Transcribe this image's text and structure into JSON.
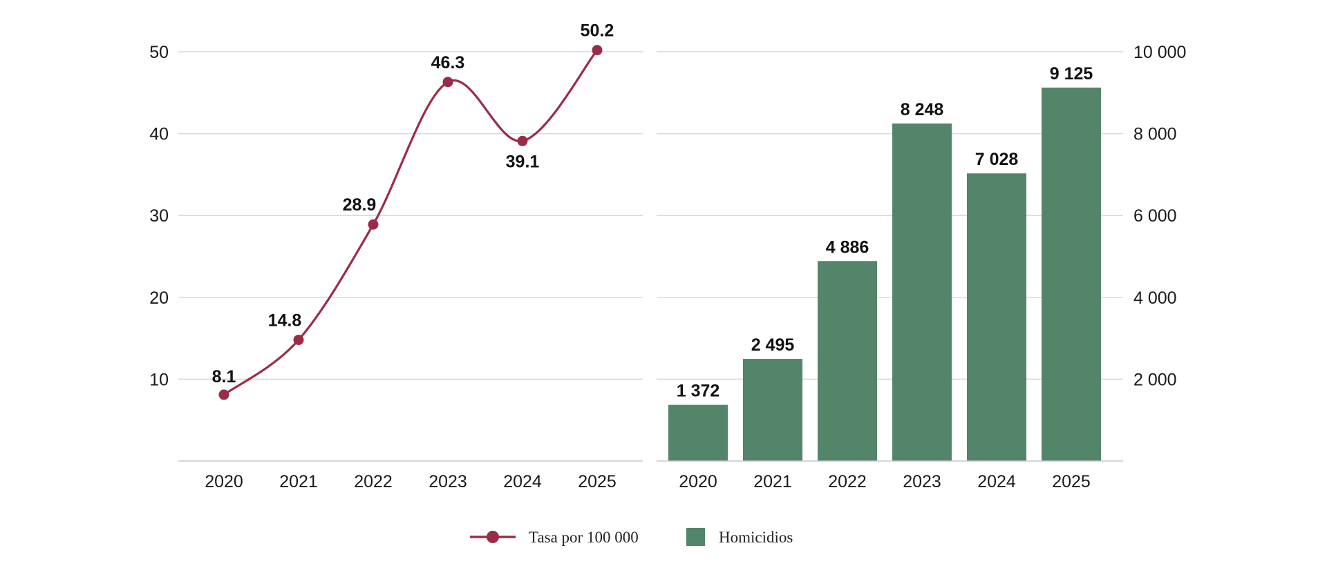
{
  "chart_data": [
    {
      "type": "line",
      "categories": [
        "2020",
        "2021",
        "2022",
        "2023",
        "2024",
        "2025"
      ],
      "series": [
        {
          "name": "Tasa por 100 000",
          "values": [
            8.1,
            14.8,
            28.9,
            46.3,
            39.1,
            50.2
          ]
        }
      ],
      "data_labels": [
        "8.1",
        "14.8",
        "28.9",
        "46.3",
        "39.1",
        "50.2"
      ],
      "yticks": [
        "10",
        "20",
        "30",
        "40",
        "50"
      ],
      "ylim": [
        0,
        50
      ],
      "y_axis_side": "left",
      "grid": true,
      "color": "#9b2c47"
    },
    {
      "type": "bar",
      "categories": [
        "2020",
        "2021",
        "2022",
        "2023",
        "2024",
        "2025"
      ],
      "series": [
        {
          "name": "Homicidios",
          "values": [
            1372,
            2495,
            4886,
            8248,
            7028,
            9125
          ]
        }
      ],
      "data_labels": [
        "1 372",
        "2 495",
        "4 886",
        "8 248",
        "7 028",
        "9 125"
      ],
      "yticks": [
        "2 000",
        "4 000",
        "6 000",
        "8 000",
        "10 000"
      ],
      "ylim": [
        0,
        10000
      ],
      "y_axis_side": "right",
      "grid": true,
      "color": "#52856a"
    }
  ],
  "legend": {
    "placement": "bottom-center",
    "items": [
      {
        "label": "Tasa por 100 000",
        "marker": "line-dot",
        "color": "#9b2c47"
      },
      {
        "label": "Homicidios",
        "marker": "square",
        "color": "#52856a"
      }
    ]
  }
}
